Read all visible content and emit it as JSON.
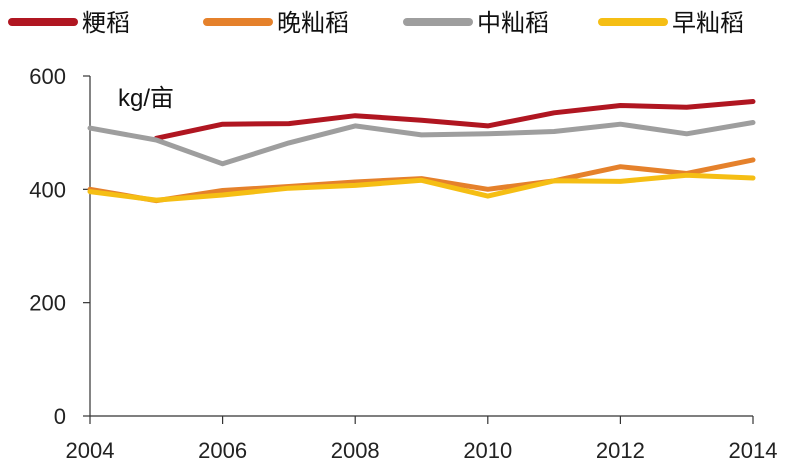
{
  "chart_data": {
    "type": "line",
    "unit_label": "kg/亩",
    "x": [
      2004,
      2005,
      2006,
      2007,
      2008,
      2009,
      2010,
      2011,
      2012,
      2013,
      2014
    ],
    "xticks": [
      2004,
      2006,
      2008,
      2010,
      2012,
      2014
    ],
    "yticks": [
      0,
      200,
      400,
      600
    ],
    "ylim": [
      0,
      600
    ],
    "xlim": [
      2004,
      2014
    ],
    "grid": false,
    "legend_position": "top",
    "series": [
      {
        "name": "粳稻",
        "color": "#b01621",
        "values": [
          null,
          490,
          515,
          516,
          530,
          522,
          512,
          535,
          548,
          545,
          555
        ]
      },
      {
        "name": "晚籼稻",
        "color": "#e5812b",
        "values": [
          400,
          380,
          398,
          405,
          413,
          419,
          400,
          415,
          440,
          428,
          452
        ]
      },
      {
        "name": "中籼稻",
        "color": "#9e9e9e",
        "values": [
          508,
          487,
          445,
          482,
          512,
          496,
          498,
          502,
          515,
          498,
          518
        ]
      },
      {
        "name": "早籼稻",
        "color": "#f5be14",
        "values": [
          396,
          381,
          390,
          402,
          407,
          416,
          388,
          415,
          414,
          425,
          420
        ]
      }
    ]
  }
}
